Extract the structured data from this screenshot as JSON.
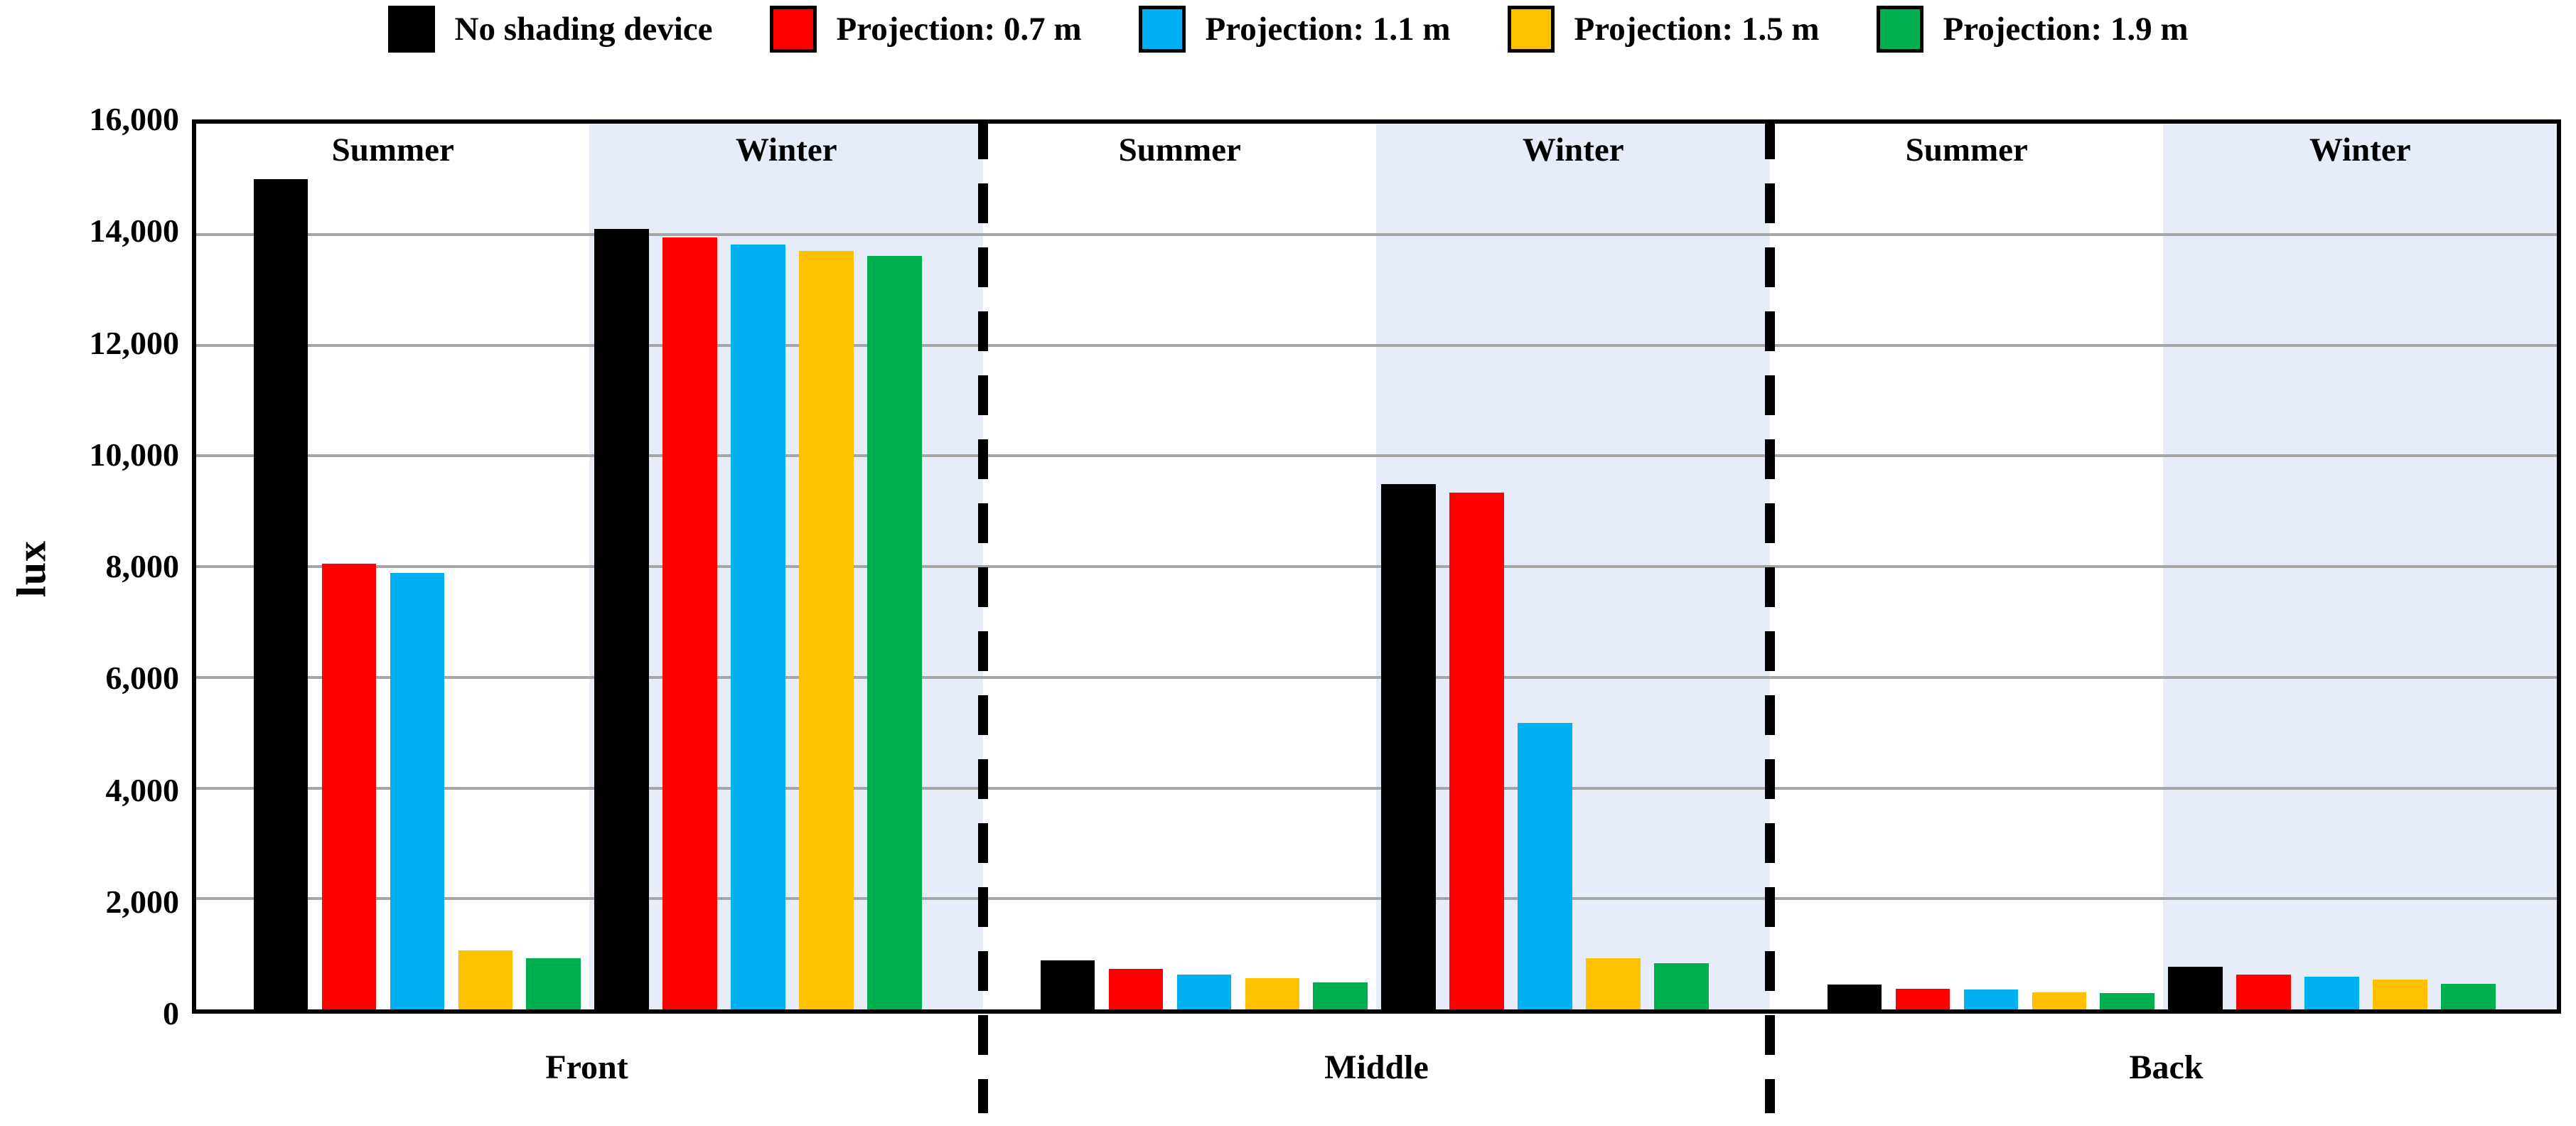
{
  "ylabel": "lux",
  "chart_data": {
    "type": "bar",
    "title": "",
    "xlabel": "",
    "ylabel": "lux",
    "ylim": [
      0,
      16000
    ],
    "ytick_interval": 2000,
    "yticks": [
      {
        "value": 16000,
        "label": "16,000"
      },
      {
        "value": 14000,
        "label": "14,000"
      },
      {
        "value": 12000,
        "label": "12,000"
      },
      {
        "value": 10000,
        "label": "10,000"
      },
      {
        "value": 8000,
        "label": "8,000"
      },
      {
        "value": 6000,
        "label": "6,000"
      },
      {
        "value": 4000,
        "label": "4,000"
      },
      {
        "value": 2000,
        "label": "2,000"
      },
      {
        "value": 0,
        "label": "0"
      }
    ],
    "grid": true,
    "legend_position": "top",
    "series": [
      {
        "name": "No shading device",
        "color": "#000000"
      },
      {
        "name": "Projection: 0.7 m",
        "color": "#FF0000"
      },
      {
        "name": "Projection: 1.1 m",
        "color": "#00B0F0"
      },
      {
        "name": "Projection: 1.5 m",
        "color": "#FFC000"
      },
      {
        "name": "Projection: 1.9 m",
        "color": "#00B050"
      }
    ],
    "sections": [
      {
        "label": "Front",
        "seasons": [
          {
            "label": "Summer",
            "shaded": false,
            "values": [
              15000,
              8050,
              7880,
              1060,
              930
            ]
          },
          {
            "label": "Winter",
            "shaded": true,
            "values": [
              14100,
              13950,
              13820,
              13700,
              13610
            ]
          }
        ]
      },
      {
        "label": "Middle",
        "seasons": [
          {
            "label": "Summer",
            "shaded": false,
            "values": [
              890,
              730,
              630,
              570,
              490
            ]
          },
          {
            "label": "Winter",
            "shaded": true,
            "values": [
              9490,
              9330,
              5180,
              920,
              830
            ]
          }
        ]
      },
      {
        "label": "Back",
        "seasons": [
          {
            "label": "Summer",
            "shaded": false,
            "values": [
              450,
              370,
              355,
              310,
              295
            ]
          },
          {
            "label": "Winter",
            "shaded": true,
            "values": [
              770,
              630,
              590,
              540,
              460
            ]
          }
        ]
      }
    ],
    "colors": {
      "winter_band": "#E7EDF8",
      "gridline": "#A6A6A6",
      "axis": "#000000"
    }
  }
}
